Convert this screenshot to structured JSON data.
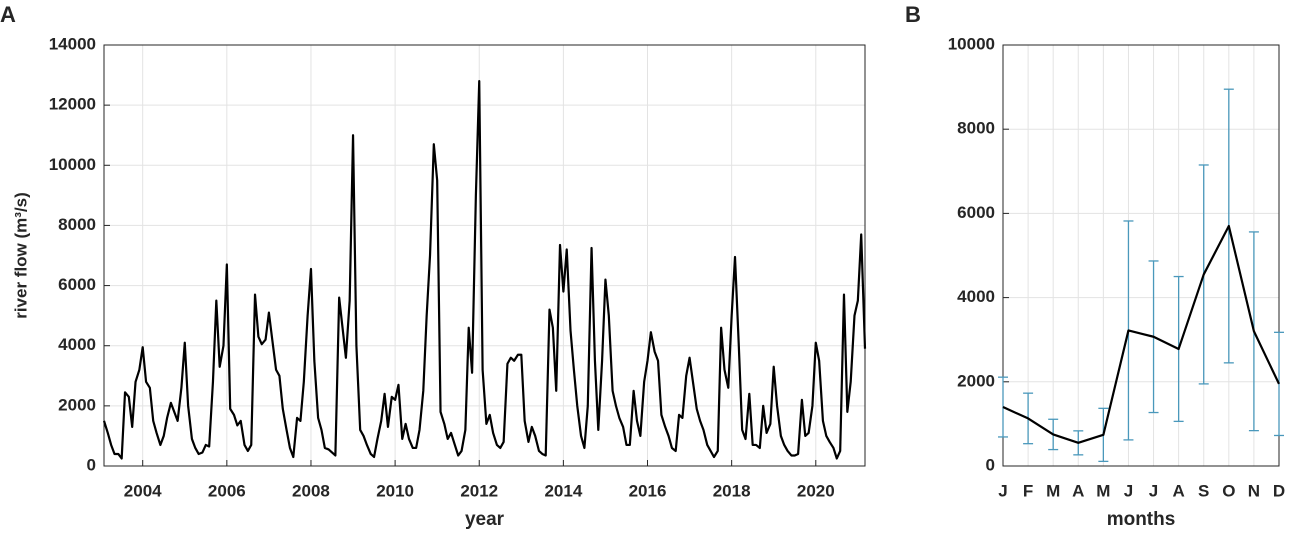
{
  "chart_data": [
    {
      "type": "line",
      "panel_label": "A",
      "x_label": "year",
      "y_label": "river flow (m³/s)",
      "xlim": [
        2003.08,
        2021.17
      ],
      "xticks": [
        2004,
        2006,
        2008,
        2010,
        2012,
        2014,
        2016,
        2018,
        2020
      ],
      "ylim": [
        0,
        14000
      ],
      "yticks": [
        0,
        2000,
        4000,
        6000,
        8000,
        10000,
        12000,
        14000
      ],
      "grid": true,
      "series": [
        {
          "color": "#000000",
          "x": [
            2003.08,
            2003.17,
            2003.25,
            2003.33,
            2003.42,
            2003.5,
            2003.58,
            2003.67,
            2003.75,
            2003.83,
            2003.92,
            2004,
            2004.08,
            2004.17,
            2004.25,
            2004.33,
            2004.42,
            2004.5,
            2004.58,
            2004.67,
            2004.75,
            2004.83,
            2004.92,
            2005,
            2005.08,
            2005.17,
            2005.25,
            2005.33,
            2005.42,
            2005.5,
            2005.58,
            2005.67,
            2005.75,
            2005.83,
            2005.92,
            2006,
            2006.08,
            2006.17,
            2006.25,
            2006.33,
            2006.42,
            2006.5,
            2006.58,
            2006.67,
            2006.75,
            2006.83,
            2006.92,
            2007,
            2007.08,
            2007.17,
            2007.25,
            2007.33,
            2007.42,
            2007.5,
            2007.58,
            2007.67,
            2007.75,
            2007.83,
            2007.92,
            2008,
            2008.08,
            2008.17,
            2008.25,
            2008.33,
            2008.42,
            2008.5,
            2008.58,
            2008.67,
            2008.75,
            2008.83,
            2008.92,
            2009,
            2009.08,
            2009.17,
            2009.25,
            2009.33,
            2009.42,
            2009.5,
            2009.58,
            2009.67,
            2009.75,
            2009.83,
            2009.92,
            2010,
            2010.08,
            2010.17,
            2010.25,
            2010.33,
            2010.42,
            2010.5,
            2010.58,
            2010.67,
            2010.75,
            2010.83,
            2010.92,
            2011,
            2011.08,
            2011.17,
            2011.25,
            2011.33,
            2011.42,
            2011.5,
            2011.58,
            2011.67,
            2011.75,
            2011.83,
            2011.92,
            2012,
            2012.08,
            2012.17,
            2012.25,
            2012.33,
            2012.42,
            2012.5,
            2012.58,
            2012.67,
            2012.75,
            2012.83,
            2012.92,
            2013,
            2013.08,
            2013.17,
            2013.25,
            2013.33,
            2013.42,
            2013.5,
            2013.58,
            2013.67,
            2013.75,
            2013.83,
            2013.92,
            2014,
            2014.08,
            2014.17,
            2014.25,
            2014.33,
            2014.42,
            2014.5,
            2014.58,
            2014.67,
            2014.75,
            2014.83,
            2014.92,
            2015,
            2015.08,
            2015.17,
            2015.25,
            2015.33,
            2015.42,
            2015.5,
            2015.58,
            2015.67,
            2015.75,
            2015.83,
            2015.92,
            2016,
            2016.08,
            2016.17,
            2016.25,
            2016.33,
            2016.42,
            2016.5,
            2016.58,
            2016.67,
            2016.75,
            2016.83,
            2016.92,
            2017,
            2017.08,
            2017.17,
            2017.25,
            2017.33,
            2017.42,
            2017.5,
            2017.58,
            2017.67,
            2017.75,
            2017.83,
            2017.92,
            2018,
            2018.08,
            2018.17,
            2018.25,
            2018.33,
            2018.42,
            2018.5,
            2018.58,
            2018.67,
            2018.75,
            2018.83,
            2018.92,
            2019,
            2019.08,
            2019.17,
            2019.25,
            2019.33,
            2019.42,
            2019.5,
            2019.58,
            2019.67,
            2019.75,
            2019.83,
            2019.92,
            2020,
            2020.08,
            2020.17,
            2020.25,
            2020.33,
            2020.42,
            2020.5,
            2020.58,
            2020.67,
            2020.75,
            2020.83,
            2020.92,
            2021,
            2021.08,
            2021.17
          ],
          "values": [
            1500,
            1100,
            700,
            400,
            400,
            250,
            2450,
            2300,
            1300,
            2800,
            3200,
            3950,
            2800,
            2600,
            1500,
            1100,
            700,
            1000,
            1600,
            2100,
            1800,
            1500,
            2600,
            4100,
            2000,
            900,
            600,
            400,
            450,
            700,
            650,
            2800,
            5500,
            3300,
            4000,
            6700,
            1900,
            1700,
            1350,
            1500,
            700,
            500,
            700,
            5700,
            4300,
            4050,
            4200,
            5100,
            4200,
            3200,
            3000,
            1900,
            1200,
            600,
            300,
            1600,
            1500,
            2800,
            5000,
            6550,
            3500,
            1600,
            1200,
            600,
            550,
            450,
            350,
            5600,
            4600,
            3600,
            5500,
            11000,
            4000,
            1200,
            1000,
            700,
            400,
            300,
            900,
            1500,
            2400,
            1300,
            2300,
            2200,
            2700,
            900,
            1400,
            900,
            600,
            600,
            1200,
            2500,
            5000,
            7000,
            10700,
            9500,
            1800,
            1400,
            900,
            1100,
            700,
            350,
            500,
            1200,
            4600,
            3100,
            9000,
            12800,
            3200,
            1400,
            1700,
            1100,
            700,
            600,
            800,
            3400,
            3600,
            3500,
            3700,
            3700,
            1500,
            800,
            1300,
            1000,
            500,
            400,
            350,
            5200,
            4600,
            2500,
            7350,
            5800,
            7200,
            4500,
            3200,
            2000,
            1000,
            600,
            2000,
            7250,
            3500,
            1200,
            3500,
            6200,
            5000,
            2500,
            2000,
            1600,
            1300,
            700,
            700,
            2500,
            1500,
            1000,
            2800,
            3500,
            4450,
            3800,
            3500,
            1700,
            1300,
            1000,
            600,
            500,
            1700,
            1600,
            3000,
            3600,
            2800,
            1900,
            1500,
            1200,
            700,
            500,
            300,
            500,
            4600,
            3200,
            2600,
            5000,
            6950,
            4000,
            1200,
            900,
            2400,
            700,
            700,
            600,
            2000,
            1100,
            1400,
            3300,
            2000,
            1000,
            700,
            500,
            350,
            350,
            400,
            2200,
            1000,
            1100,
            2000,
            4100,
            3500,
            1500,
            1000,
            800,
            600,
            250,
            500,
            5700,
            1800,
            2800,
            5000,
            5500,
            7700,
            3900
          ]
        }
      ]
    },
    {
      "type": "errorbar",
      "panel_label": "B",
      "x_label": "months",
      "categories": [
        "J",
        "F",
        "M",
        "A",
        "M",
        "J",
        "J",
        "A",
        "S",
        "O",
        "N",
        "D"
      ],
      "ylim": [
        0,
        10000
      ],
      "yticks": [
        0,
        2000,
        4000,
        6000,
        8000,
        10000
      ],
      "grid": true,
      "series": [
        {
          "color": "#000000",
          "error_color": "#4a98bb",
          "values": [
            1400,
            1130,
            750,
            550,
            740,
            3220,
            3070,
            2780,
            4550,
            5700,
            3200,
            1950
          ],
          "errors": [
            710,
            600,
            360,
            285,
            630,
            2600,
            1800,
            1720,
            2600,
            3250,
            2360,
            1225
          ]
        }
      ]
    }
  ]
}
